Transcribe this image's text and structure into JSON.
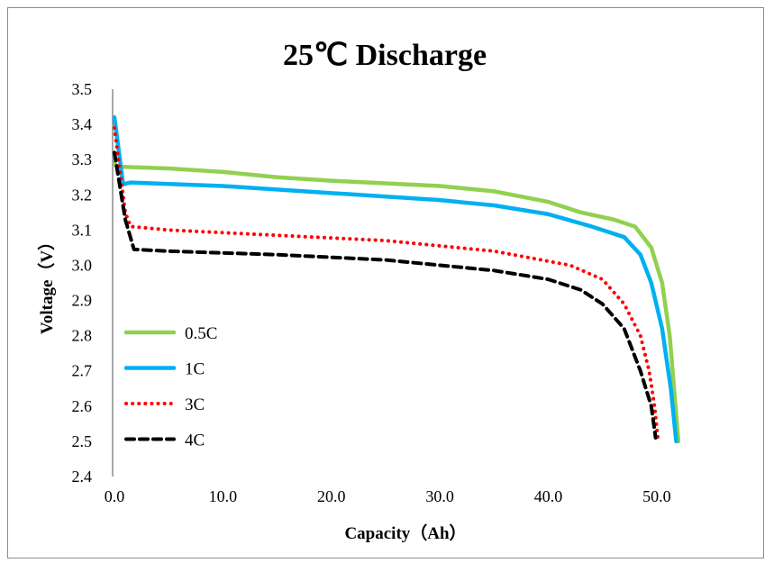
{
  "chart_data": {
    "type": "line",
    "title": "25℃ Discharge",
    "xlabel": "Capacity（Ah）",
    "ylabel": "Voltage（V）",
    "xlim": [
      0,
      55
    ],
    "ylim": [
      2.4,
      3.5
    ],
    "xticks": [
      "0.0",
      "10.0",
      "20.0",
      "30.0",
      "40.0",
      "50.0"
    ],
    "xtick_values": [
      0,
      10,
      20,
      30,
      40,
      50
    ],
    "yticks": [
      "2.4",
      "2.5",
      "2.6",
      "2.7",
      "2.8",
      "2.9",
      "3.0",
      "3.1",
      "3.2",
      "3.3",
      "3.4",
      "3.5"
    ],
    "ytick_values": [
      2.4,
      2.5,
      2.6,
      2.7,
      2.8,
      2.9,
      3.0,
      3.1,
      3.2,
      3.3,
      3.4,
      3.5
    ],
    "grid": false,
    "legend_position": "left-bottom-inside",
    "series": [
      {
        "name": "0.5C",
        "color": "#92d050",
        "style": "solid",
        "x": [
          0,
          0.2,
          5,
          10,
          15,
          20,
          30,
          35,
          40,
          43,
          46,
          48,
          49.5,
          50.5,
          51.2,
          51.6,
          52
        ],
        "y": [
          3.29,
          3.28,
          3.275,
          3.265,
          3.25,
          3.24,
          3.225,
          3.21,
          3.18,
          3.15,
          3.13,
          3.11,
          3.05,
          2.95,
          2.8,
          2.65,
          2.5
        ]
      },
      {
        "name": "1C",
        "color": "#00b0f0",
        "style": "solid",
        "x": [
          0,
          0.8,
          1.5,
          10,
          20,
          30,
          35,
          40,
          44,
          47,
          48.5,
          49.5,
          50.5,
          51.3,
          51.8
        ],
        "y": [
          3.42,
          3.23,
          3.235,
          3.225,
          3.205,
          3.185,
          3.17,
          3.145,
          3.11,
          3.08,
          3.03,
          2.95,
          2.82,
          2.65,
          2.5
        ]
      },
      {
        "name": "3C",
        "color": "#ff0000",
        "style": "dotted",
        "x": [
          0,
          1,
          1.5,
          5,
          15,
          25,
          35,
          42,
          45,
          47,
          48.5,
          49.3,
          49.8,
          50.1
        ],
        "y": [
          3.39,
          3.15,
          3.11,
          3.1,
          3.085,
          3.07,
          3.04,
          3.0,
          2.96,
          2.89,
          2.8,
          2.7,
          2.6,
          2.51
        ]
      },
      {
        "name": "4C",
        "color": "#000000",
        "style": "dashed",
        "x": [
          0,
          1,
          1.8,
          5,
          15,
          25,
          35,
          40,
          43,
          45,
          47,
          48.5,
          49.5,
          49.9
        ],
        "y": [
          3.32,
          3.13,
          3.045,
          3.04,
          3.03,
          3.015,
          2.985,
          2.96,
          2.93,
          2.89,
          2.82,
          2.7,
          2.6,
          2.51
        ]
      }
    ]
  }
}
